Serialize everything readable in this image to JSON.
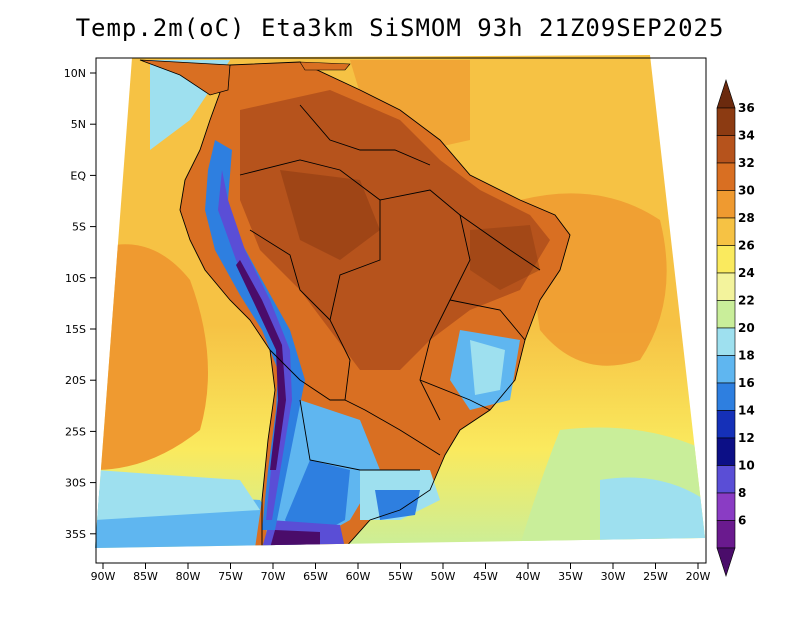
{
  "title": "Temp.2m(oC) Eta3km SiSMOM 93h 21Z09SEP2025",
  "lat_ticks": [
    "10N",
    "5N",
    "EQ",
    "5S",
    "10S",
    "15S",
    "20S",
    "25S",
    "30S",
    "35S"
  ],
  "lon_ticks": [
    "90W",
    "85W",
    "80W",
    "75W",
    "70W",
    "65W",
    "60W",
    "55W",
    "50W",
    "45W",
    "40W",
    "35W",
    "30W",
    "25W",
    "20W"
  ],
  "colorbar": {
    "labels": [
      "36",
      "34",
      "32",
      "30",
      "28",
      "26",
      "24",
      "22",
      "20",
      "18",
      "16",
      "14",
      "12",
      "10",
      "8",
      "6"
    ],
    "colors": [
      "#6b2a0e",
      "#8c3b12",
      "#b6531c",
      "#d96f22",
      "#ef9a30",
      "#f6c244",
      "#faea5e",
      "#f3f39c",
      "#c9ee9a",
      "#9ee0ef",
      "#5fb6f0",
      "#2e7fe0",
      "#1530b8",
      "#0c0f86",
      "#5a4ed6",
      "#8a3cc4",
      "#6a1a8e",
      "#4a0c6a"
    ]
  },
  "map_colors": {
    "ocean_warm": "#f6c244",
    "ocean_cool": "#faea5e",
    "ocean_orange": "#ef9a30",
    "land_hot": "#b6531c",
    "land_mid": "#d96f22",
    "andes_cold": "#2e7fe0",
    "andes_colder": "#4a0c6a",
    "south_cold": "#5fb6f0",
    "south_cool": "#c9ee9a"
  }
}
